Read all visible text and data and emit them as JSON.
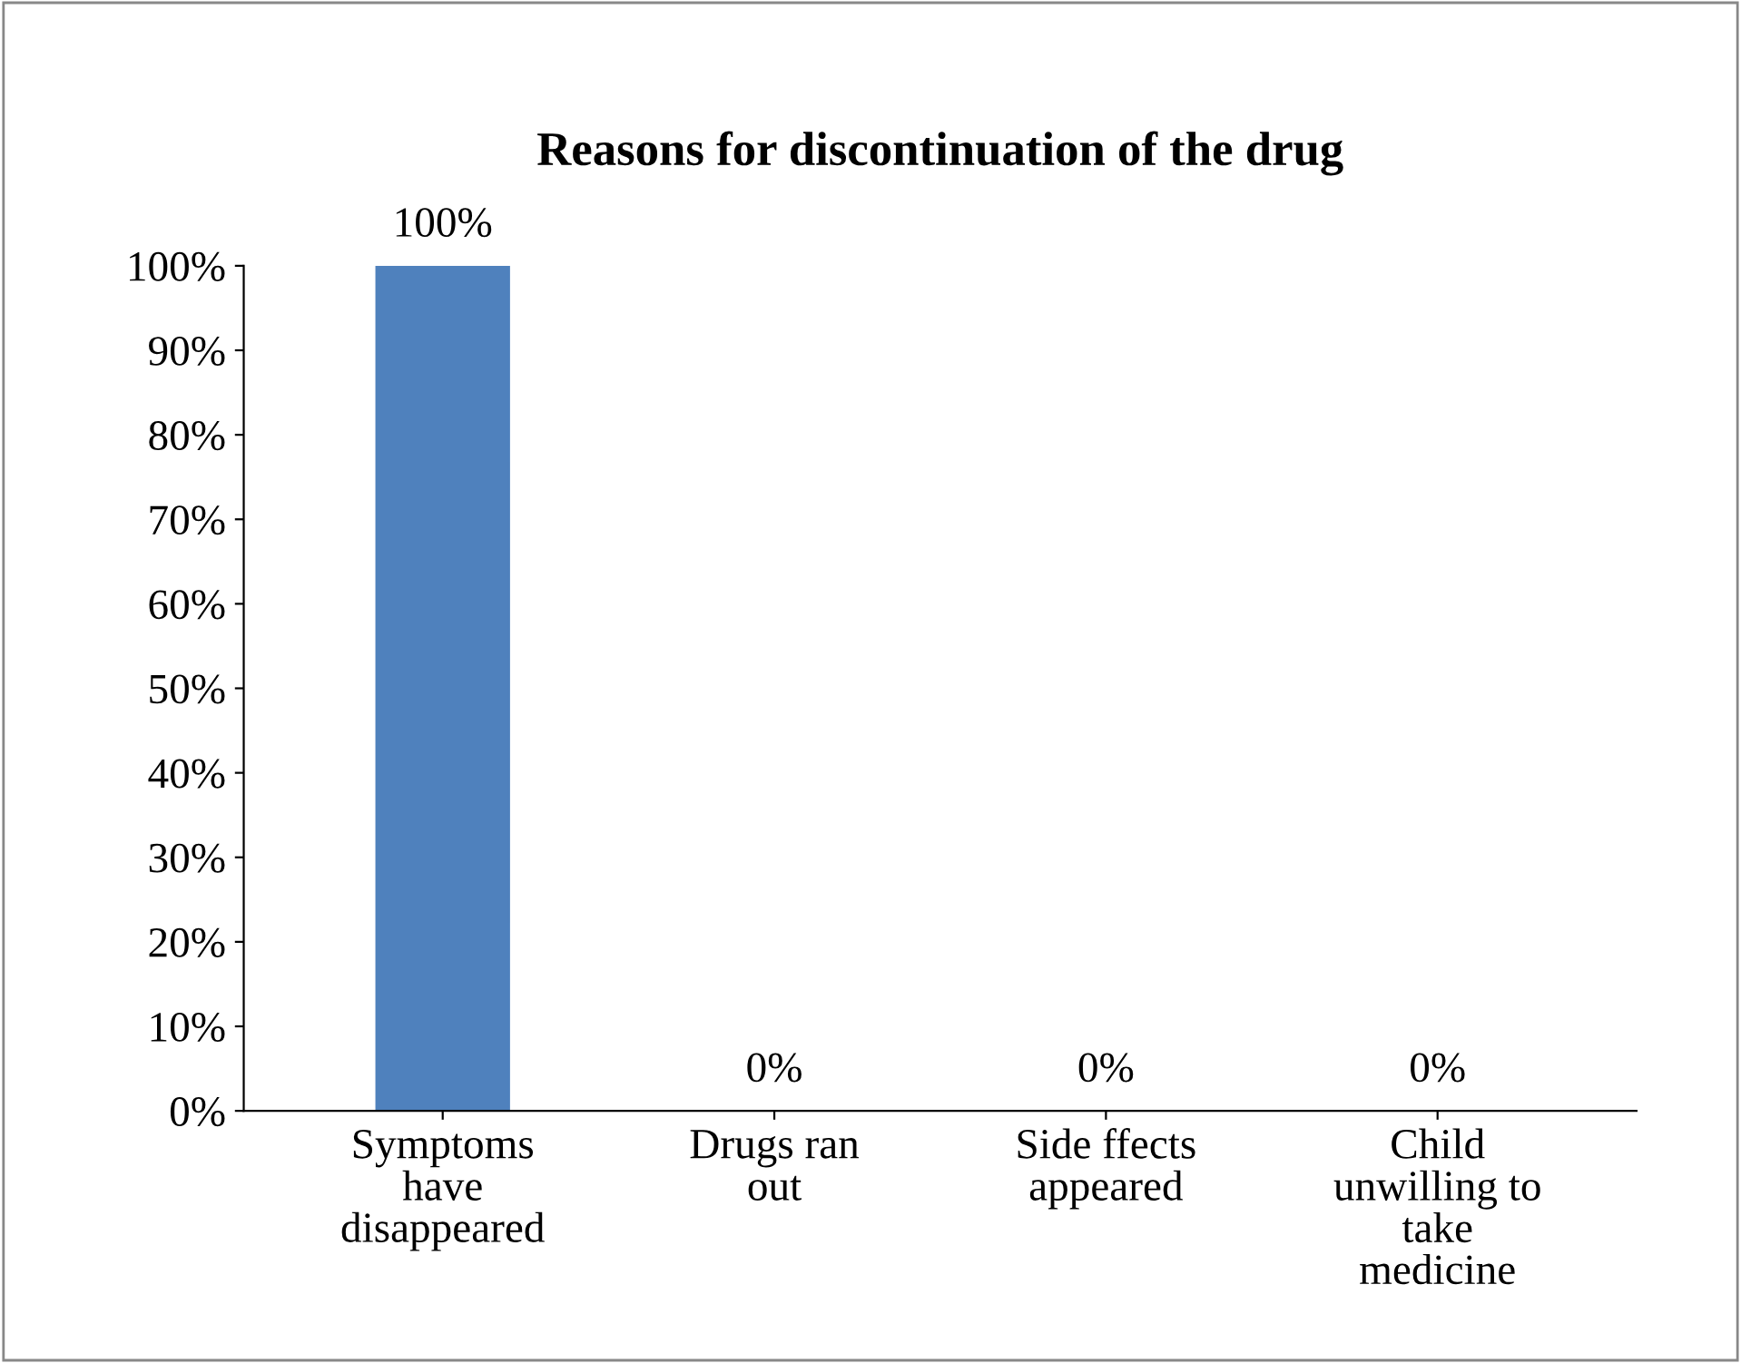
{
  "chart_data": {
    "type": "bar",
    "title": "Reasons for discontinuation of the drug",
    "categories": [
      "Symptoms have disappeared",
      "Drugs ran out",
      "Side ffects appeared",
      "Child unwilling to take medicine"
    ],
    "values": [
      100,
      0,
      0,
      0
    ],
    "color": "#4f81bd",
    "value_labels": [
      "100%",
      "0%",
      "0%",
      "0%"
    ],
    "ylim": [
      0,
      100
    ],
    "yticks": [
      {
        "value": 0,
        "label": "0%"
      },
      {
        "value": 10,
        "label": "10%"
      },
      {
        "value": 20,
        "label": "20%"
      },
      {
        "value": 30,
        "label": "30%"
      },
      {
        "value": 40,
        "label": "40%"
      },
      {
        "value": 50,
        "label": "50%"
      },
      {
        "value": 60,
        "label": "60%"
      },
      {
        "value": 70,
        "label": "70%"
      },
      {
        "value": 80,
        "label": "80%"
      },
      {
        "value": 90,
        "label": "90%"
      },
      {
        "value": 100,
        "label": "100%"
      }
    ],
    "grid": false
  }
}
